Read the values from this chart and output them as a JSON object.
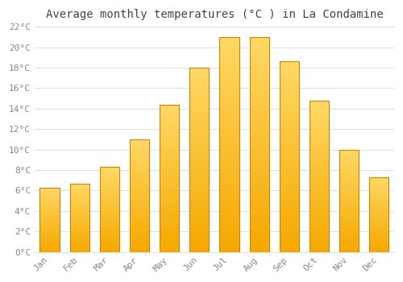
{
  "title": "Average monthly temperatures (°C ) in La Condamine",
  "months": [
    "Jan",
    "Feb",
    "Mar",
    "Apr",
    "May",
    "Jun",
    "Jul",
    "Aug",
    "Sep",
    "Oct",
    "Nov",
    "Dec"
  ],
  "values": [
    6.3,
    6.7,
    8.3,
    11.0,
    14.4,
    18.0,
    21.0,
    21.0,
    18.6,
    14.8,
    10.0,
    7.3
  ],
  "bar_color_bottom": "#F5A800",
  "bar_color_top": "#FFD966",
  "bar_edge_color": "#C8860A",
  "ylim": [
    0,
    22
  ],
  "yticks": [
    0,
    2,
    4,
    6,
    8,
    10,
    12,
    14,
    16,
    18,
    20,
    22
  ],
  "background_color": "#ffffff",
  "plot_bg_color": "#ffffff",
  "grid_color": "#e0e0e0",
  "title_fontsize": 10,
  "tick_fontsize": 8,
  "tick_color": "#888888",
  "title_color": "#444444",
  "font_family": "monospace",
  "bar_width": 0.65
}
